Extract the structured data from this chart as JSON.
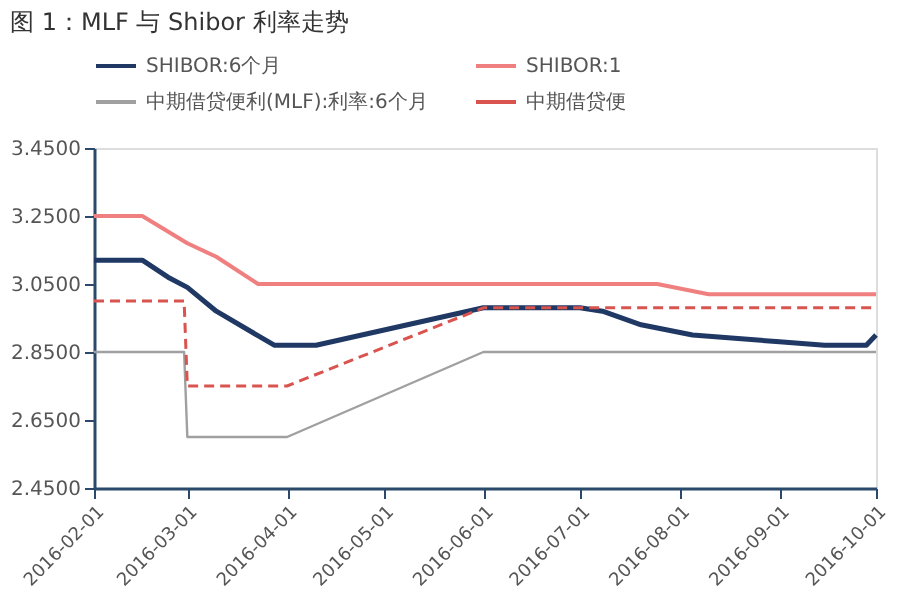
{
  "chart_data": {
    "type": "line",
    "title": "图 1：MLF 与 Shibor 利率走势",
    "series": [
      {
        "name": "SHIBOR:6个月",
        "color": "#1f3864",
        "line_style": "solid",
        "x": [
          "2016-02-01",
          "2016-02-16",
          "2016-02-24",
          "2016-03-01",
          "2016-03-10",
          "2016-03-28",
          "2016-04-10",
          "2016-06-01",
          "2016-07-01",
          "2016-07-08",
          "2016-07-20",
          "2016-08-05",
          "2016-09-01",
          "2016-09-15",
          "2016-09-28",
          "2016-10-01"
        ],
        "values": [
          3.12,
          3.12,
          3.07,
          3.04,
          2.97,
          2.87,
          2.87,
          2.98,
          2.98,
          2.97,
          2.93,
          2.9,
          2.88,
          2.87,
          2.87,
          2.9
        ]
      },
      {
        "name": "SHIBOR:1",
        "color": "#f08080",
        "line_style": "solid",
        "x": [
          "2016-02-01",
          "2016-02-16",
          "2016-03-01",
          "2016-03-10",
          "2016-03-23",
          "2016-07-25",
          "2016-08-10",
          "2016-10-01"
        ],
        "values": [
          3.25,
          3.25,
          3.17,
          3.13,
          3.05,
          3.05,
          3.02,
          3.02
        ]
      },
      {
        "name": "中期借贷便利(MLF):利率:6个月",
        "color": "#a0a0a0",
        "line_style": "solid",
        "x": [
          "2016-02-01",
          "2016-02-29",
          "2016-03-01",
          "2016-04-01",
          "2016-06-01",
          "2016-10-01"
        ],
        "values": [
          2.85,
          2.85,
          2.6,
          2.6,
          2.85,
          2.85
        ]
      },
      {
        "name": "中期借贷便",
        "color": "#d9534f",
        "line_style": "dashed",
        "x": [
          "2016-02-01",
          "2016-02-29",
          "2016-03-01",
          "2016-04-01",
          "2016-06-01",
          "2016-07-05",
          "2016-10-01"
        ],
        "values": [
          3.0,
          3.0,
          2.75,
          2.75,
          2.98,
          2.98,
          2.98
        ]
      }
    ],
    "xlim": [
      "2016-02-01",
      "2016-10-01"
    ],
    "xticks": [
      "2016-02-01",
      "2016-03-01",
      "2016-04-01",
      "2016-05-01",
      "2016-06-01",
      "2016-07-01",
      "2016-08-01",
      "2016-09-01",
      "2016-10-01"
    ],
    "ylim": [
      2.45,
      3.45
    ],
    "yticks": [
      {
        "value": 2.45,
        "label": "2.4500"
      },
      {
        "value": 2.65,
        "label": "2.6500"
      },
      {
        "value": 2.85,
        "label": "2.8500"
      },
      {
        "value": 3.05,
        "label": "3.0500"
      },
      {
        "value": 3.25,
        "label": "3.2500"
      },
      {
        "value": 3.45,
        "label": "3.4500"
      }
    ],
    "grid": false,
    "legend": "top",
    "marker": "none"
  }
}
